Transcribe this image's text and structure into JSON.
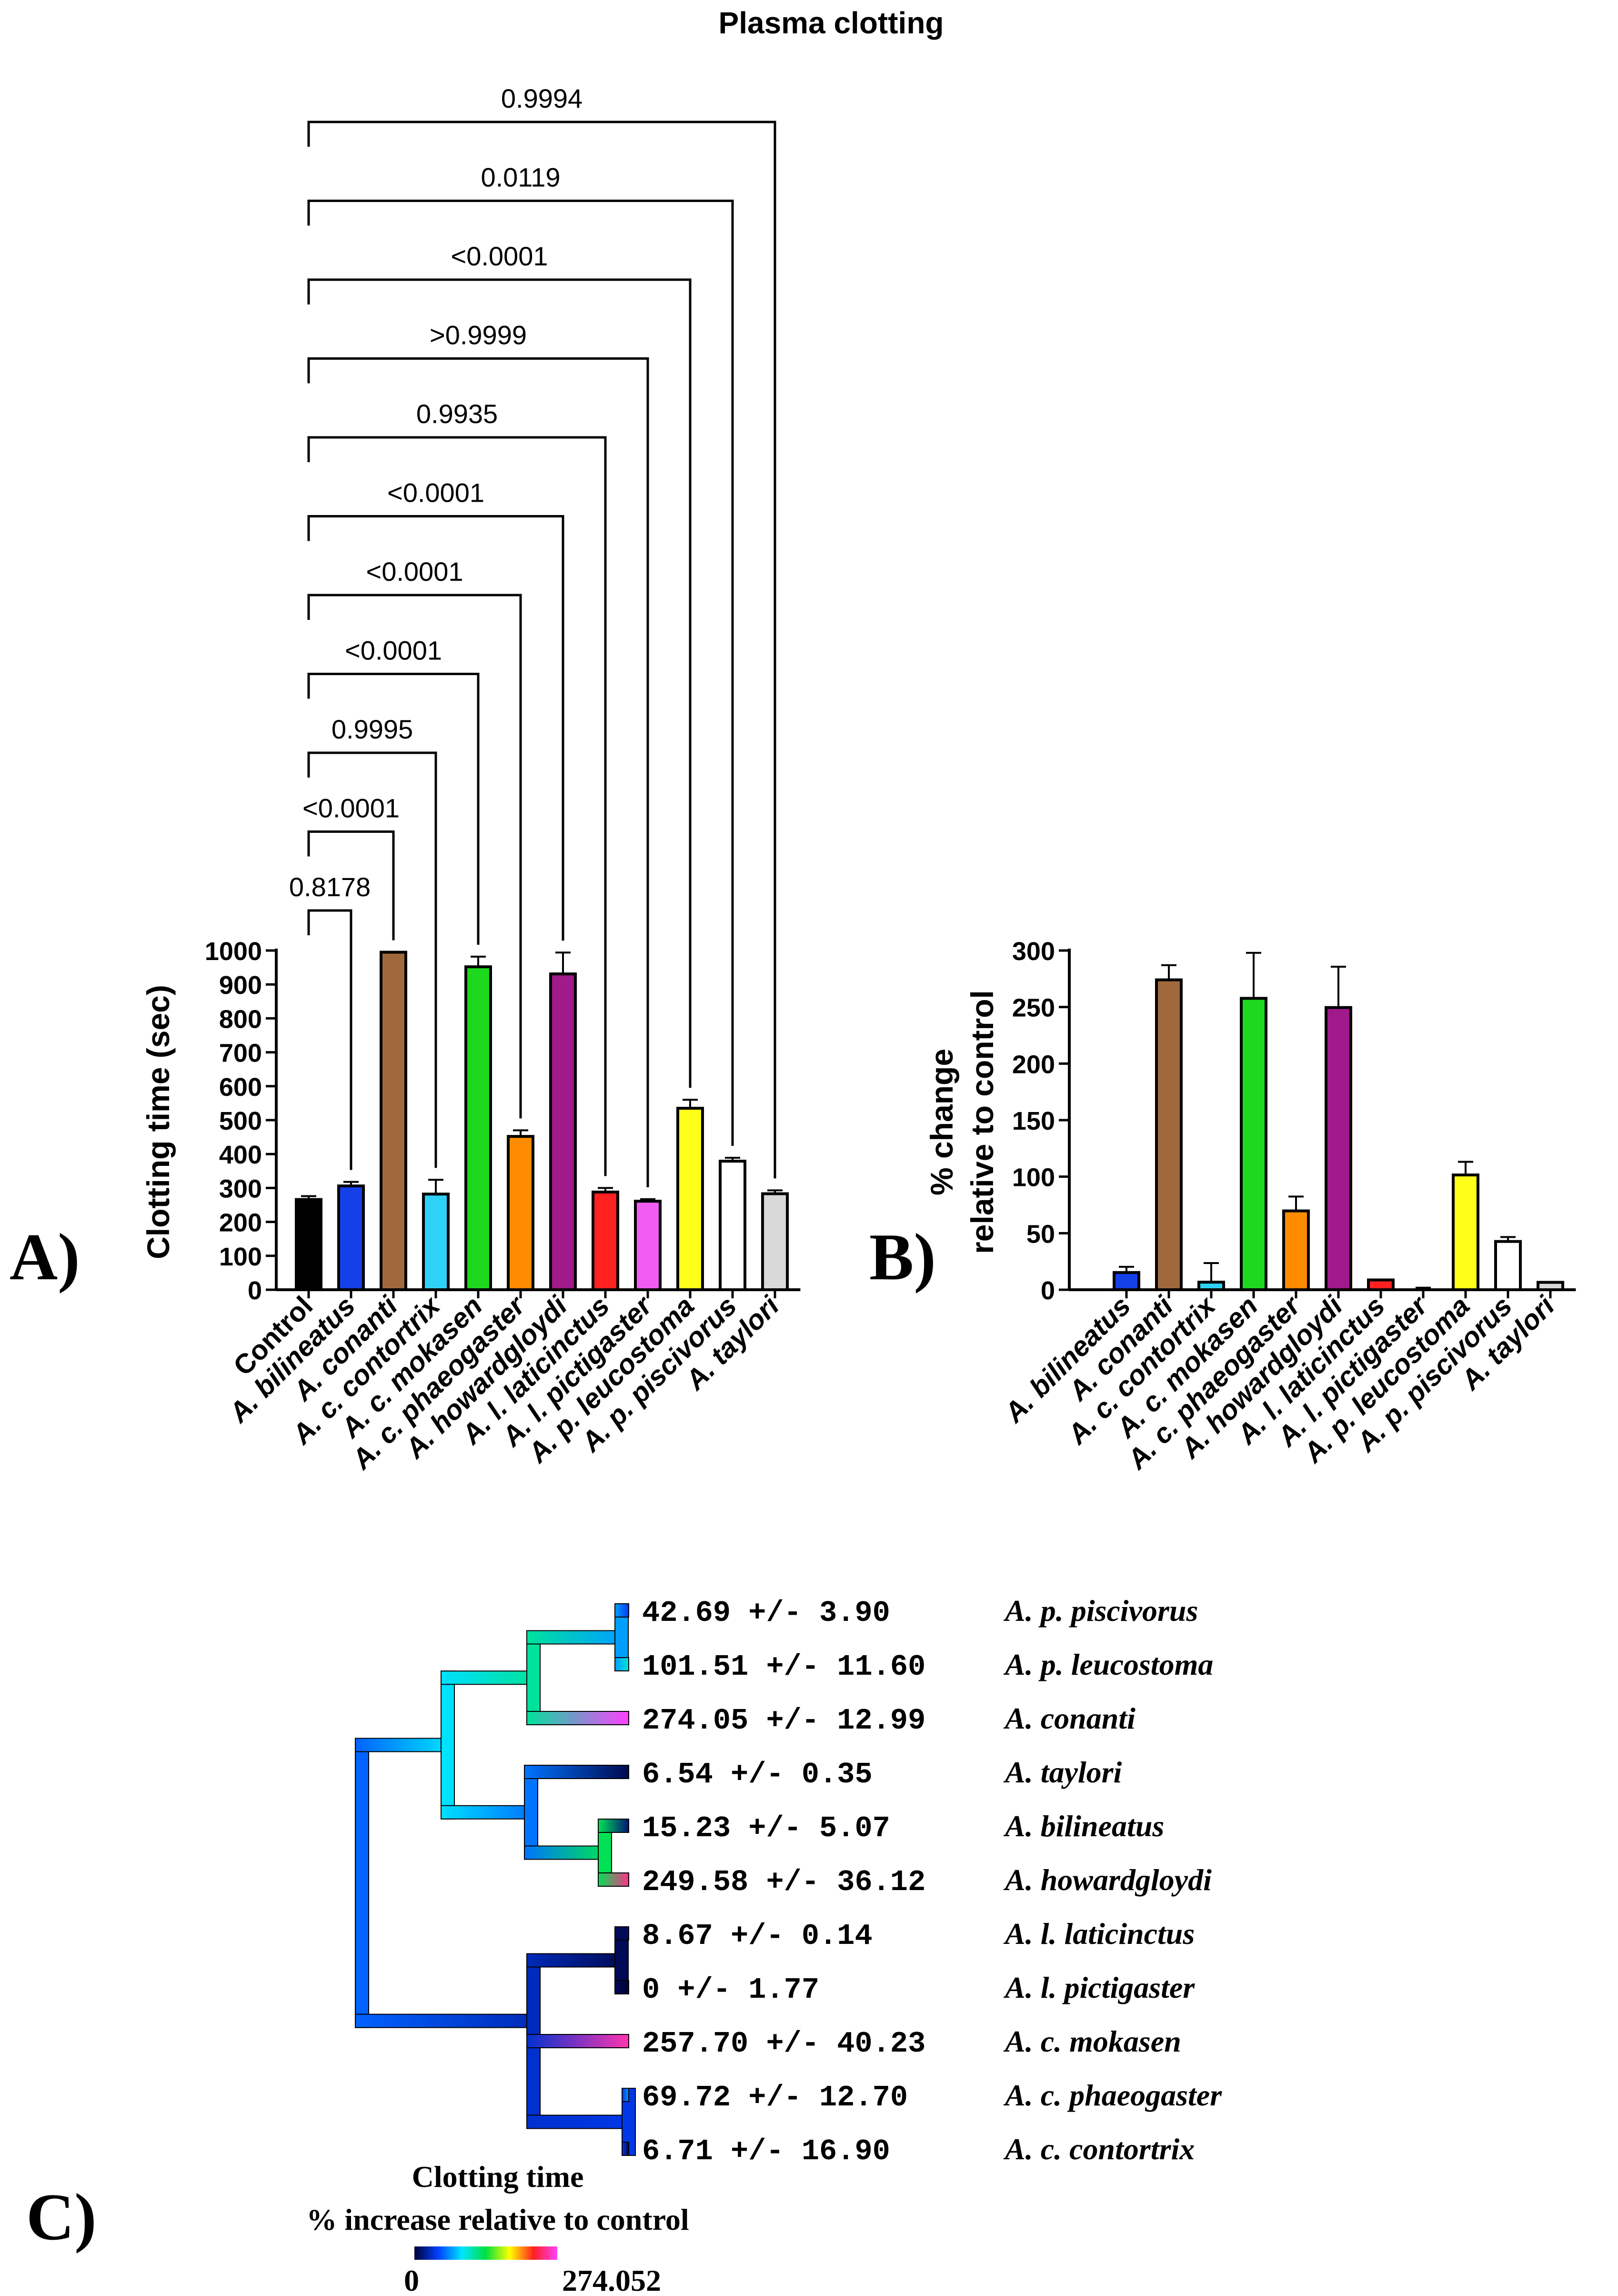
{
  "figure": {
    "title": "Plasma clotting",
    "panel_labels": [
      "A)",
      "B)",
      "C)"
    ]
  },
  "chart_data": [
    {
      "panel": "A)",
      "type": "bar",
      "title": "Plasma clotting",
      "xlabel": "",
      "ylabel": "Clotting time (sec)",
      "ylim": [
        0,
        1000
      ],
      "yticks": [
        0,
        100,
        200,
        300,
        400,
        500,
        600,
        700,
        800,
        900,
        1000
      ],
      "categories": [
        "Control",
        "A. bilineatus",
        "A. conanti",
        "A. c. contortrix",
        "A. c. mokasen",
        "A. c. phaeogaster",
        "A. howardgloydi",
        "A. l. laticinctus",
        "A. l. pictigaster",
        "A. p. leucostoma",
        "A. p. piscivorus",
        "A. taylori"
      ],
      "values": [
        266,
        306,
        995,
        282,
        952,
        452,
        931,
        288,
        261,
        535,
        379,
        283
      ],
      "errors": [
        10,
        12,
        0,
        42,
        30,
        18,
        63,
        12,
        6,
        25,
        10,
        10
      ],
      "colors": [
        "#000000",
        "#1440e8",
        "#a0693c",
        "#2fd2f7",
        "#1ed81e",
        "#ff8c00",
        "#a01a8c",
        "#ff2020",
        "#f25bf2",
        "#ffff1a",
        "#ffffff",
        "#d9d9d9"
      ],
      "comparisons": [
        {
          "target": "A. bilineatus",
          "p": "0.8178"
        },
        {
          "target": "A. conanti",
          "p": "<0.0001"
        },
        {
          "target": "A. c. contortrix",
          "p": "0.9995"
        },
        {
          "target": "A. c. mokasen",
          "p": "<0.0001"
        },
        {
          "target": "A. c. phaeogaster",
          "p": "<0.0001"
        },
        {
          "target": "A. howardgloydi",
          "p": "<0.0001"
        },
        {
          "target": "A. l. laticinctus",
          "p": "0.9935"
        },
        {
          "target": "A. l. pictigaster",
          "p": ">0.9999"
        },
        {
          "target": "A. p. leucostoma",
          "p": "<0.0001"
        },
        {
          "target": "A. p. piscivorus",
          "p": "0.0119"
        },
        {
          "target": "A. taylori",
          "p": "0.9994"
        }
      ]
    },
    {
      "panel": "B)",
      "type": "bar",
      "title": "",
      "xlabel": "",
      "ylabel": [
        "% change",
        "relative to control"
      ],
      "ylim": [
        0,
        300
      ],
      "yticks": [
        0,
        50,
        100,
        150,
        200,
        250,
        300
      ],
      "categories": [
        "A. bilineatus",
        "A. conanti",
        "A. c. contortrix",
        "A. c. mokasen",
        "A. c. phaeogaster",
        "A. howardgloydi",
        "A. l. laticinctus",
        "A. l. pictigaster",
        "A. p. leucostoma",
        "A. p. piscivorus",
        "A. taylori"
      ],
      "values": [
        15.23,
        274.05,
        6.71,
        257.7,
        69.72,
        249.58,
        8.67,
        0,
        101.51,
        42.69,
        6.54
      ],
      "errors": [
        5.07,
        12.99,
        16.9,
        40.23,
        12.7,
        36.12,
        0.14,
        1.77,
        11.6,
        3.9,
        0.35
      ],
      "colors": [
        "#1440e8",
        "#a0693c",
        "#2fd2f7",
        "#1ed81e",
        "#ff8c00",
        "#a01a8c",
        "#ff2020",
        "#f25bf2",
        "#ffff1a",
        "#ffffff",
        "#d9d9d9"
      ]
    },
    {
      "panel": "C)",
      "type": "tree",
      "title": "",
      "legend_title": [
        "Clotting time",
        "% increase relative to control"
      ],
      "scale_min_label": "0",
      "scale_max_label": "274.052",
      "scale_range": [
        0,
        274.052
      ],
      "gradient": [
        "#000033",
        "#0040ff",
        "#00e5ff",
        "#00e040",
        "#ffff00",
        "#ff2020",
        "#ff40ff"
      ],
      "tips": [
        {
          "value_text": "42.69 +/- 3.90",
          "taxon": "A. p. piscivorus",
          "value": 42.69
        },
        {
          "value_text": "101.51 +/- 11.60",
          "taxon": "A. p. leucostoma",
          "value": 101.51
        },
        {
          "value_text": "274.05 +/- 12.99",
          "taxon": "A. conanti",
          "value": 274.05
        },
        {
          "value_text": "6.54 +/- 0.35",
          "taxon": "A. taylori",
          "value": 6.54
        },
        {
          "value_text": "15.23 +/- 5.07",
          "taxon": "A. bilineatus",
          "value": 15.23
        },
        {
          "value_text": "249.58 +/- 36.12",
          "taxon": "A. howardgloydi",
          "value": 249.58
        },
        {
          "value_text": "8.67 +/- 0.14",
          "taxon": "A. l. laticinctus",
          "value": 8.67
        },
        {
          "value_text": "0 +/- 1.77",
          "taxon": "A. l. pictigaster",
          "value": 0
        },
        {
          "value_text": "257.70 +/- 40.23",
          "taxon": "A. c. mokasen",
          "value": 257.7
        },
        {
          "value_text": "69.72 +/- 12.70",
          "taxon": "A. c. phaeogaster",
          "value": 69.72
        },
        {
          "value_text": "6.71 +/- 16.90",
          "taxon": "A. c. contortrix",
          "value": 6.71
        }
      ]
    }
  ]
}
